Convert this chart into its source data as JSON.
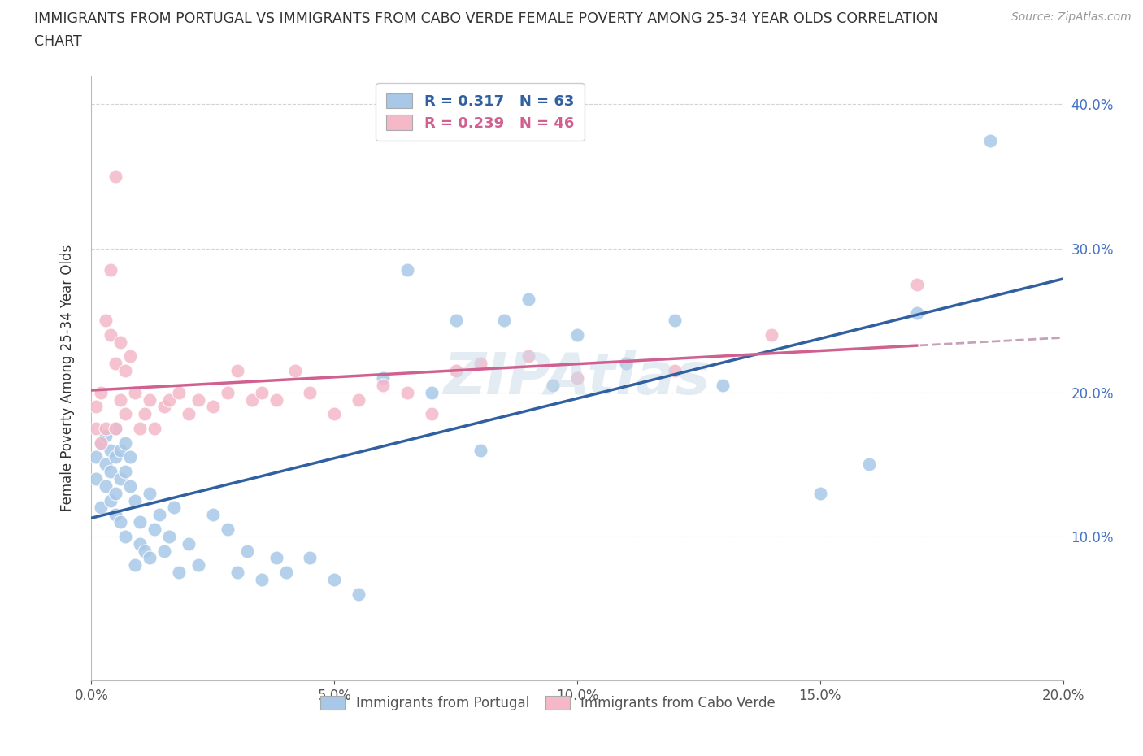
{
  "title_line1": "IMMIGRANTS FROM PORTUGAL VS IMMIGRANTS FROM CABO VERDE FEMALE POVERTY AMONG 25-34 YEAR OLDS CORRELATION",
  "title_line2": "CHART",
  "source": "Source: ZipAtlas.com",
  "ylabel": "Female Poverty Among 25-34 Year Olds",
  "xlim": [
    0.0,
    0.2
  ],
  "ylim": [
    0.0,
    0.42
  ],
  "portugal_color": "#a8c8e8",
  "caboverde_color": "#f4b8c8",
  "trend_portugal_color": "#3060a0",
  "trend_caboverde_color": "#d06090",
  "trend_caboverde_dashed_color": "#c8a0b8",
  "watermark_color": "#c8d8e8",
  "legend_R_portugal": "0.317",
  "legend_N_portugal": "63",
  "legend_R_caboverde": "0.239",
  "legend_N_caboverde": "46",
  "background_color": "#ffffff",
  "grid_color": "#d0d0d0",
  "ytick_label_color": "#4472c4",
  "portugal_x": [
    0.001,
    0.001,
    0.002,
    0.002,
    0.003,
    0.003,
    0.003,
    0.004,
    0.004,
    0.004,
    0.005,
    0.005,
    0.005,
    0.005,
    0.006,
    0.006,
    0.006,
    0.007,
    0.007,
    0.007,
    0.008,
    0.008,
    0.009,
    0.009,
    0.01,
    0.01,
    0.011,
    0.012,
    0.012,
    0.013,
    0.014,
    0.015,
    0.016,
    0.017,
    0.018,
    0.02,
    0.022,
    0.025,
    0.028,
    0.03,
    0.032,
    0.035,
    0.038,
    0.04,
    0.045,
    0.05,
    0.055,
    0.06,
    0.065,
    0.07,
    0.075,
    0.08,
    0.085,
    0.09,
    0.095,
    0.1,
    0.11,
    0.12,
    0.13,
    0.15,
    0.16,
    0.17,
    0.185
  ],
  "portugal_y": [
    0.155,
    0.14,
    0.12,
    0.165,
    0.135,
    0.15,
    0.17,
    0.125,
    0.145,
    0.16,
    0.13,
    0.155,
    0.175,
    0.115,
    0.14,
    0.16,
    0.11,
    0.145,
    0.165,
    0.1,
    0.135,
    0.155,
    0.08,
    0.125,
    0.095,
    0.11,
    0.09,
    0.13,
    0.085,
    0.105,
    0.115,
    0.09,
    0.1,
    0.12,
    0.075,
    0.095,
    0.08,
    0.115,
    0.105,
    0.075,
    0.09,
    0.07,
    0.085,
    0.075,
    0.085,
    0.07,
    0.06,
    0.21,
    0.285,
    0.2,
    0.25,
    0.16,
    0.25,
    0.265,
    0.205,
    0.24,
    0.22,
    0.25,
    0.205,
    0.13,
    0.15,
    0.255,
    0.375
  ],
  "caboverde_x": [
    0.001,
    0.001,
    0.002,
    0.002,
    0.003,
    0.003,
    0.004,
    0.004,
    0.005,
    0.005,
    0.005,
    0.006,
    0.006,
    0.007,
    0.007,
    0.008,
    0.009,
    0.01,
    0.011,
    0.012,
    0.013,
    0.015,
    0.016,
    0.018,
    0.02,
    0.022,
    0.025,
    0.028,
    0.03,
    0.033,
    0.035,
    0.038,
    0.042,
    0.045,
    0.05,
    0.055,
    0.06,
    0.065,
    0.07,
    0.075,
    0.08,
    0.09,
    0.1,
    0.12,
    0.14,
    0.17
  ],
  "caboverde_y": [
    0.175,
    0.19,
    0.2,
    0.165,
    0.25,
    0.175,
    0.24,
    0.285,
    0.175,
    0.22,
    0.35,
    0.195,
    0.235,
    0.185,
    0.215,
    0.225,
    0.2,
    0.175,
    0.185,
    0.195,
    0.175,
    0.19,
    0.195,
    0.2,
    0.185,
    0.195,
    0.19,
    0.2,
    0.215,
    0.195,
    0.2,
    0.195,
    0.215,
    0.2,
    0.185,
    0.195,
    0.205,
    0.2,
    0.185,
    0.215,
    0.22,
    0.225,
    0.21,
    0.215,
    0.24,
    0.275
  ]
}
